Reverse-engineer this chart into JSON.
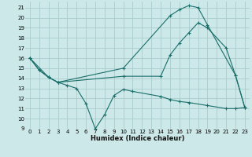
{
  "xlabel": "Humidex (Indice chaleur)",
  "background_color": "#cce8e8",
  "grid_color": "#aacccc",
  "line_color": "#1a6e6a",
  "xlim": [
    -0.5,
    23.5
  ],
  "ylim": [
    9,
    21.6
  ],
  "yticks": [
    9,
    10,
    11,
    12,
    13,
    14,
    15,
    16,
    17,
    18,
    19,
    20,
    21
  ],
  "xticks": [
    0,
    1,
    2,
    3,
    4,
    5,
    6,
    7,
    8,
    9,
    10,
    11,
    12,
    13,
    14,
    15,
    16,
    17,
    18,
    19,
    20,
    21,
    22,
    23
  ],
  "line1_x": [
    0,
    1,
    2,
    3,
    10,
    14,
    15,
    16,
    17,
    18,
    19,
    21,
    22,
    23
  ],
  "line1_y": [
    16,
    14.8,
    14.1,
    13.6,
    14.2,
    14.2,
    16.3,
    17.5,
    18.5,
    19.5,
    19.0,
    17.0,
    14.3,
    11.1
  ],
  "line2_x": [
    0,
    1,
    2,
    3,
    4,
    5,
    6,
    7,
    8,
    9,
    10,
    11,
    14,
    15,
    16,
    17,
    19,
    21,
    22,
    23
  ],
  "line2_y": [
    16,
    14.8,
    14.1,
    13.6,
    13.3,
    13.0,
    11.5,
    9.0,
    10.4,
    12.3,
    12.9,
    12.7,
    12.2,
    11.9,
    11.7,
    11.6,
    11.3,
    11.0,
    11.0,
    11.1
  ],
  "line3_x": [
    0,
    2,
    3,
    10,
    15,
    16,
    17,
    18,
    19,
    22,
    23
  ],
  "line3_y": [
    16,
    14.1,
    13.6,
    15.0,
    20.2,
    20.8,
    21.2,
    21.0,
    19.3,
    14.3,
    11.1
  ]
}
